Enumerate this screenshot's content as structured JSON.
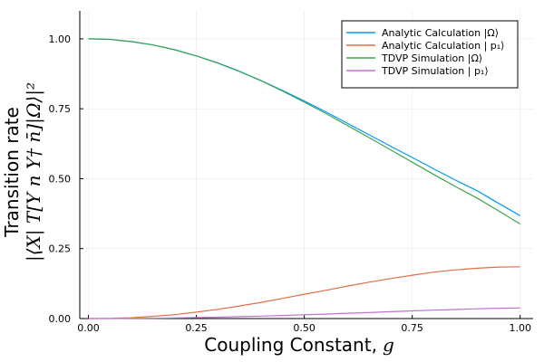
{
  "chart_data": {
    "type": "line",
    "xlabel": "Coupling Constant,",
    "xlabel_var": "g",
    "ylabel_line1": "Transition rate",
    "ylabel_line2": "|⟨X| T[Y n Y† n̄]|Ω⟩|²",
    "xlim": [
      -0.02,
      1.03
    ],
    "ylim": [
      0.0,
      1.1
    ],
    "xticks": [
      0.0,
      0.25,
      0.5,
      0.75,
      1.0
    ],
    "xtick_labels": [
      "0.00",
      "0.25",
      "0.50",
      "0.75",
      "1.00"
    ],
    "yticks": [
      0.0,
      0.25,
      0.5,
      0.75,
      1.0
    ],
    "ytick_labels": [
      "0.00",
      "0.25",
      "0.50",
      "0.75",
      "1.00"
    ],
    "grid": true,
    "legend_position": "top-right",
    "x": [
      0.0,
      0.05,
      0.1,
      0.15,
      0.2,
      0.25,
      0.3,
      0.35,
      0.4,
      0.45,
      0.5,
      0.55,
      0.6,
      0.65,
      0.7,
      0.75,
      0.8,
      0.85,
      0.9,
      0.95,
      1.0
    ],
    "series": [
      {
        "name": "Analytic Calculation |Ω⟩",
        "color": "#009AFA",
        "values": [
          1.0,
          0.998,
          0.99,
          0.978,
          0.961,
          0.939,
          0.914,
          0.884,
          0.851,
          0.815,
          0.778,
          0.739,
          0.698,
          0.657,
          0.616,
          0.576,
          0.535,
          0.495,
          0.457,
          0.412,
          0.368
        ]
      },
      {
        "name": "Analytic Calculation | p₁⟩",
        "color": "#E36F47",
        "values": [
          0.0,
          0.0008,
          0.003,
          0.008,
          0.014,
          0.023,
          0.033,
          0.045,
          0.058,
          0.072,
          0.087,
          0.101,
          0.116,
          0.13,
          0.143,
          0.155,
          0.166,
          0.174,
          0.18,
          0.184,
          0.185
        ]
      },
      {
        "name": "TDVP Simulation |Ω⟩",
        "color": "#3EA44E",
        "values": [
          1.0,
          0.998,
          0.99,
          0.978,
          0.961,
          0.939,
          0.913,
          0.883,
          0.85,
          0.813,
          0.774,
          0.733,
          0.69,
          0.647,
          0.603,
          0.559,
          0.515,
          0.472,
          0.431,
          0.385,
          0.338
        ]
      },
      {
        "name": "TDVP Simulation | p₁⟩",
        "color": "#C371D2",
        "values": [
          0.0,
          0.0001,
          0.0005,
          0.0012,
          0.0022,
          0.0035,
          0.005,
          0.0068,
          0.0088,
          0.011,
          0.0135,
          0.016,
          0.019,
          0.0215,
          0.0245,
          0.0275,
          0.03,
          0.0325,
          0.035,
          0.037,
          0.038
        ]
      }
    ]
  }
}
